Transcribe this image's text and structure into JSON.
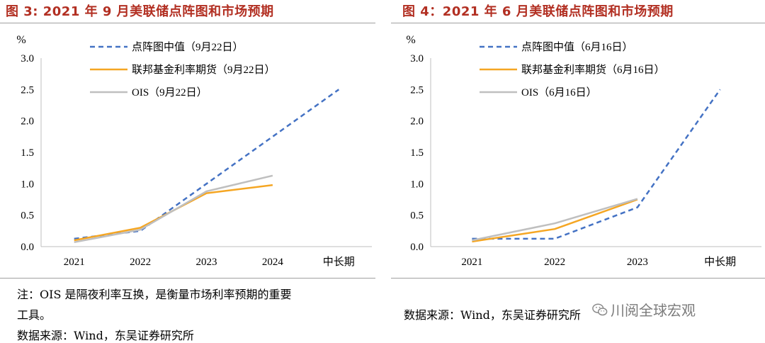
{
  "charts": [
    {
      "figure_title": "图 3:   2021 年 9 月美联储点阵图和市场预期",
      "note": "注：OIS 是隔夜利率互换，是衡量市场利率预期的重要",
      "note_line2": "工具。",
      "source": "数据来源：Wind，东吴证券研究所"
    },
    {
      "figure_title": "图 4：2021 年 6 月美联储点阵图和市场预期",
      "source": "数据来源：Wind，东吴证券研究所"
    }
  ],
  "watermark": {
    "text": "川阅全球宏观",
    "icon": "wechat-icon"
  },
  "chart_data": [
    {
      "type": "line",
      "categories": [
        "2021",
        "2022",
        "2023",
        "2024",
        "中长期"
      ],
      "ylabel": "%",
      "ylim": [
        0,
        3.0
      ],
      "yticks": [
        "0.0",
        "0.5",
        "1.0",
        "1.5",
        "2.0",
        "2.5",
        "3.0"
      ],
      "legend_position": "top-left",
      "series": [
        {
          "name": "点阵图中值（9月22日）",
          "style": "dashed",
          "color": "#4472c4",
          "values": [
            0.125,
            0.25,
            1.0,
            1.75,
            2.5
          ]
        },
        {
          "name": "联邦基金利率期货（9月22日）",
          "style": "solid",
          "color": "#f5a623",
          "values": [
            0.1,
            0.3,
            0.85,
            0.98,
            null
          ]
        },
        {
          "name": "OIS（9月22日）",
          "style": "solid",
          "color": "#bfbfbf",
          "values": [
            0.07,
            0.27,
            0.88,
            1.13,
            null
          ]
        }
      ]
    },
    {
      "type": "line",
      "categories": [
        "2021",
        "2022",
        "2023",
        "中长期"
      ],
      "ylabel": "%",
      "ylim": [
        0,
        3.0
      ],
      "yticks": [
        "0.0",
        "0.5",
        "1.0",
        "1.5",
        "2.0",
        "2.5",
        "3.0"
      ],
      "legend_position": "top-left",
      "series": [
        {
          "name": "点阵图中值（6月16日）",
          "style": "dashed",
          "color": "#4472c4",
          "values": [
            0.125,
            0.125,
            0.625,
            2.5
          ]
        },
        {
          "name": "联邦基金利率期货（6月16日）",
          "style": "solid",
          "color": "#f5a623",
          "values": [
            0.08,
            0.28,
            0.75,
            null
          ]
        },
        {
          "name": "OIS（6月16日）",
          "style": "solid",
          "color": "#bfbfbf",
          "values": [
            0.1,
            0.37,
            0.76,
            null
          ]
        }
      ]
    }
  ]
}
